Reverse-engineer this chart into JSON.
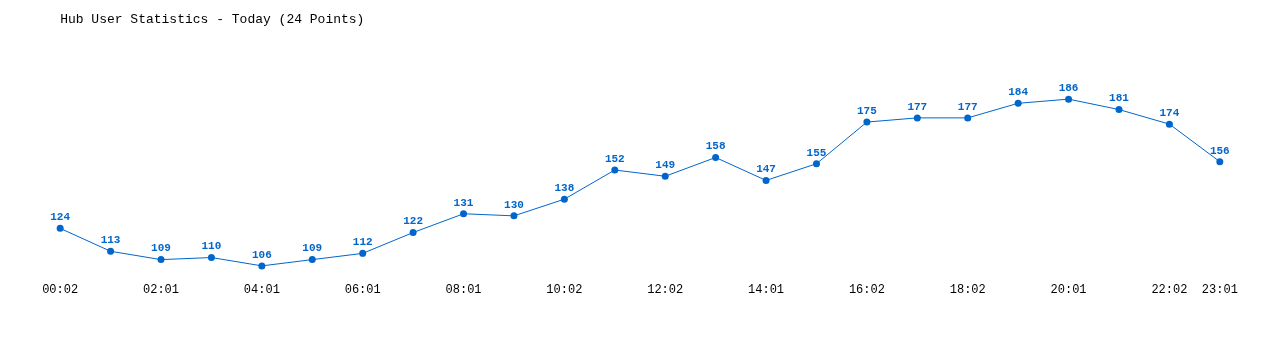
{
  "chart_data": {
    "type": "line",
    "title": "Hub User Statistics - Today (24 Points)",
    "categories": [
      "00:02",
      null,
      "02:01",
      null,
      "04:01",
      null,
      "06:01",
      null,
      "08:01",
      null,
      "10:02",
      null,
      "12:02",
      null,
      "14:01",
      null,
      "16:02",
      null,
      "18:02",
      null,
      "20:01",
      null,
      "22:02",
      "23:01"
    ],
    "series": [
      {
        "color": "#0066cc",
        "values": [
          124,
          113,
          109,
          110,
          106,
          109,
          112,
          122,
          131,
          130,
          138,
          152,
          149,
          158,
          147,
          155,
          175,
          177,
          177,
          184,
          186,
          181,
          174,
          156
        ]
      }
    ],
    "data_labels": true,
    "marker": "circle",
    "line_style": "solid",
    "grid": false,
    "tick_labels": "x"
  }
}
